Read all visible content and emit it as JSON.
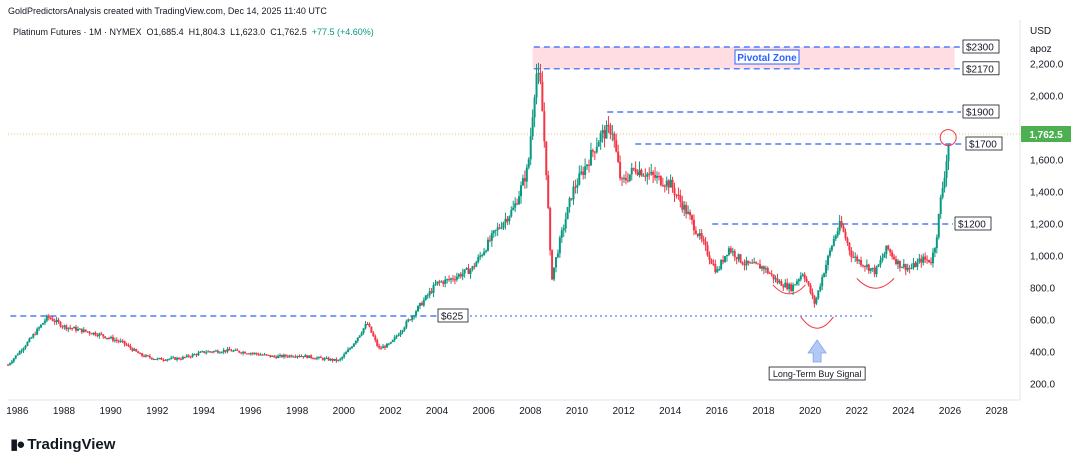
{
  "header": {
    "attribution": "GoldPredictorsAnalysis created with TradingView.com, Dec 14, 2025 11:40 UTC"
  },
  "symbol": {
    "info": "Platinum Futures · 1M · NYMEX",
    "open_label": "O",
    "open": "1,685.4",
    "high_label": "H",
    "high": "1,804.3",
    "low_label": "L",
    "low": "1,623.0",
    "close_label": "C",
    "close": "1,762.5",
    "change": "+77.5 (+4.60%)"
  },
  "axis": {
    "currency": "USD",
    "scale_mode": "apoz",
    "last_price": "1,762.5"
  },
  "branding": {
    "logo_text": "TradingView"
  },
  "colors": {
    "up": "#089981",
    "down": "#f23645",
    "level_line": "#2962ff",
    "zone_fill": "#ffdde2",
    "price_badge": "#4caf50",
    "arrow": "#b3c8f5"
  },
  "chart_data": {
    "type": "candlestick",
    "symbol": "Platinum Futures",
    "interval": "1M",
    "exchange": "NYMEX",
    "x_ticks": [
      "1986",
      "1988",
      "1990",
      "1992",
      "1994",
      "1996",
      "1998",
      "2000",
      "2002",
      "2004",
      "2006",
      "2008",
      "2010",
      "2012",
      "2014",
      "2016",
      "2018",
      "2020",
      "2022",
      "2024",
      "2026",
      "2028"
    ],
    "y_ticks": [
      "200.0",
      "400.0",
      "600.0",
      "800.0",
      "1,000.0",
      "1,200.0",
      "1,400.0",
      "1,600.0",
      "2,000.0",
      "2,200.0"
    ],
    "xlim": [
      1985.6,
      2029.0
    ],
    "ylim": [
      80,
      2400
    ],
    "price_path": [
      [
        1985.6,
        320
      ],
      [
        1986.5,
        470
      ],
      [
        1987.3,
        620
      ],
      [
        1988.0,
        560
      ],
      [
        1988.6,
        540
      ],
      [
        1989.5,
        510
      ],
      [
        1990.5,
        460
      ],
      [
        1991.3,
        380
      ],
      [
        1992.0,
        355
      ],
      [
        1993.0,
        360
      ],
      [
        1994.0,
        400
      ],
      [
        1995.0,
        410
      ],
      [
        1996.0,
        395
      ],
      [
        1997.0,
        370
      ],
      [
        1998.0,
        380
      ],
      [
        1999.0,
        360
      ],
      [
        1999.8,
        345
      ],
      [
        2000.3,
        430
      ],
      [
        2001.0,
        580
      ],
      [
        2001.5,
        420
      ],
      [
        2002.0,
        450
      ],
      [
        2003.0,
        640
      ],
      [
        2004.0,
        830
      ],
      [
        2004.5,
        850
      ],
      [
        2005.5,
        920
      ],
      [
        2006.5,
        1150
      ],
      [
        2007.3,
        1300
      ],
      [
        2007.9,
        1550
      ],
      [
        2008.1,
        1900
      ],
      [
        2008.25,
        2150
      ],
      [
        2008.45,
        2050
      ],
      [
        2008.7,
        1500
      ],
      [
        2008.9,
        850
      ],
      [
        2009.2,
        1050
      ],
      [
        2009.8,
        1400
      ],
      [
        2010.5,
        1600
      ],
      [
        2011.0,
        1750
      ],
      [
        2011.5,
        1800
      ],
      [
        2011.9,
        1450
      ],
      [
        2012.5,
        1550
      ],
      [
        2013.2,
        1500
      ],
      [
        2014.0,
        1450
      ],
      [
        2014.8,
        1250
      ],
      [
        2015.5,
        1050
      ],
      [
        2016.0,
        900
      ],
      [
        2016.5,
        1050
      ],
      [
        2017.2,
        950
      ],
      [
        2018.0,
        930
      ],
      [
        2018.6,
        840
      ],
      [
        2019.2,
        800
      ],
      [
        2019.7,
        900
      ],
      [
        2020.2,
        700
      ],
      [
        2020.5,
        860
      ],
      [
        2021.0,
        1100
      ],
      [
        2021.3,
        1200
      ],
      [
        2021.8,
        1000
      ],
      [
        2022.3,
        950
      ],
      [
        2022.8,
        900
      ],
      [
        2023.3,
        1050
      ],
      [
        2023.8,
        950
      ],
      [
        2024.3,
        920
      ],
      [
        2024.8,
        980
      ],
      [
        2025.2,
        970
      ],
      [
        2025.4,
        1100
      ],
      [
        2025.6,
        1350
      ],
      [
        2025.8,
        1550
      ],
      [
        2025.92,
        1680
      ],
      [
        2026.0,
        1762.5
      ]
    ],
    "levels": [
      {
        "label": "$2300",
        "value": 2300
      },
      {
        "label": "$2170",
        "value": 2170
      },
      {
        "label": "$1900",
        "value": 1900
      },
      {
        "label": "$1700",
        "value": 1700
      },
      {
        "label": "$1200",
        "value": 1200
      },
      {
        "label": "$625",
        "value": 625
      }
    ],
    "zone": {
      "label": "Pivotal Zone",
      "from": 2170,
      "to": 2300
    },
    "annotations": [
      {
        "text": "Long-Term Buy Signal",
        "x": 2020.3,
        "y": 540
      }
    ],
    "last_price": 1762.5,
    "grid": false
  }
}
